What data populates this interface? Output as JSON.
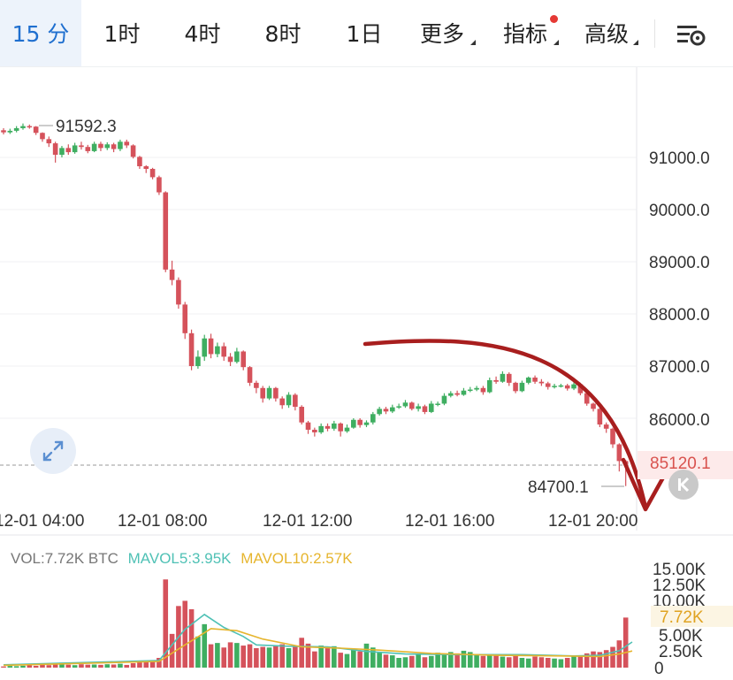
{
  "toolbar": {
    "tabs": [
      {
        "label": "15 分",
        "active": true
      },
      {
        "label": "1时"
      },
      {
        "label": "4时"
      },
      {
        "label": "8时"
      },
      {
        "label": "1日"
      },
      {
        "label": "更多",
        "dropdown": true
      },
      {
        "label": "指标",
        "dropdown": true,
        "badge": true
      },
      {
        "label": "高级",
        "dropdown": true
      }
    ],
    "settings_icon": "chart-settings-icon"
  },
  "colors": {
    "up": "#3fae61",
    "down": "#d5525b",
    "mavol5": "#4fc1b5",
    "mavol10": "#e6b52e",
    "annotation_arrow": "#a81e1e",
    "active_tab": "#1f6fcf",
    "current_price": "#d9534f"
  },
  "price_axis": {
    "labels": [
      "91000.0",
      "90000.0",
      "89000.0",
      "88000.0",
      "87000.0",
      "86000.0"
    ],
    "current_price": "85120.1"
  },
  "time_axis": {
    "labels": [
      "12-01 04:00",
      "12-01 08:00",
      "12-01 12:00",
      "12-01 16:00",
      "12-01 20:00"
    ]
  },
  "annotations": {
    "high": "91592.3",
    "low": "84700.1"
  },
  "volume": {
    "legend": {
      "vol": "VOL:7.72K BTC",
      "mavol5": "MAVOL5:3.95K",
      "mavol10": "MAVOL10:2.57K"
    },
    "axis_labels": [
      "15.00K",
      "12.50K",
      "10.00K",
      "5.00K",
      "2.50K",
      "0"
    ],
    "current_label": "7.72K"
  },
  "chart_data": {
    "type": "candlestick",
    "interval": "15 分",
    "ylim": [
      84600,
      91900
    ],
    "candles": [
      [
        91520,
        91480,
        91560,
        91440
      ],
      [
        91480,
        91510,
        91550,
        91450
      ],
      [
        91510,
        91560,
        91600,
        91480
      ],
      [
        91560,
        91600,
        91650,
        91530
      ],
      [
        91600,
        91590,
        91630,
        91550
      ],
      [
        91590,
        91470,
        91600,
        91430
      ],
      [
        91470,
        91350,
        91480,
        91300
      ],
      [
        91350,
        91270,
        91400,
        91200
      ],
      [
        91270,
        91050,
        91300,
        90900
      ],
      [
        91050,
        91180,
        91220,
        91000
      ],
      [
        91180,
        91100,
        91250,
        91050
      ],
      [
        91100,
        91230,
        91280,
        91070
      ],
      [
        91230,
        91200,
        91300,
        91150
      ],
      [
        91200,
        91120,
        91240,
        91080
      ],
      [
        91120,
        91260,
        91300,
        91100
      ],
      [
        91260,
        91180,
        91300,
        91120
      ],
      [
        91180,
        91250,
        91290,
        91140
      ],
      [
        91250,
        91160,
        91280,
        91100
      ],
      [
        91160,
        91300,
        91340,
        91120
      ],
      [
        91300,
        91230,
        91340,
        91180
      ],
      [
        91230,
        91010,
        91250,
        90980
      ],
      [
        91010,
        90830,
        91030,
        90780
      ],
      [
        90830,
        90780,
        90850,
        90700
      ],
      [
        90780,
        90620,
        90800,
        90580
      ],
      [
        90620,
        90330,
        90650,
        90280
      ],
      [
        90330,
        88850,
        90350,
        88800
      ],
      [
        88850,
        88650,
        89020,
        88550
      ],
      [
        88650,
        88180,
        88700,
        88100
      ],
      [
        88180,
        87630,
        88230,
        87520
      ],
      [
        87630,
        87000,
        87700,
        86920
      ],
      [
        87000,
        87180,
        87300,
        86950
      ],
      [
        87180,
        87530,
        87600,
        87100
      ],
      [
        87530,
        87230,
        87620,
        87150
      ],
      [
        87230,
        87380,
        87450,
        87170
      ],
      [
        87380,
        87180,
        87450,
        87100
      ],
      [
        87180,
        87080,
        87250,
        87000
      ],
      [
        87080,
        87280,
        87350,
        87050
      ],
      [
        87280,
        86980,
        87300,
        86920
      ],
      [
        86980,
        86680,
        87000,
        86620
      ],
      [
        86680,
        86580,
        86720,
        86480
      ],
      [
        86580,
        86380,
        86620,
        86300
      ],
      [
        86380,
        86580,
        86620,
        86350
      ],
      [
        86580,
        86380,
        86600,
        86320
      ],
      [
        86380,
        86250,
        86420,
        86180
      ],
      [
        86250,
        86450,
        86500,
        86200
      ],
      [
        86450,
        86220,
        86480,
        86150
      ],
      [
        86220,
        85920,
        86250,
        85880
      ],
      [
        85920,
        85780,
        85950,
        85700
      ],
      [
        85780,
        85730,
        85820,
        85650
      ],
      [
        85730,
        85850,
        85900,
        85700
      ],
      [
        85850,
        85800,
        85900,
        85750
      ],
      [
        85800,
        85900,
        85950,
        85760
      ],
      [
        85900,
        85750,
        85920,
        85650
      ],
      [
        85750,
        85820,
        85880,
        85720
      ],
      [
        85820,
        85970,
        86000,
        85800
      ],
      [
        85970,
        85870,
        86000,
        85820
      ],
      [
        85870,
        85920,
        85960,
        85830
      ],
      [
        85920,
        86080,
        86120,
        85880
      ],
      [
        86080,
        86180,
        86220,
        86050
      ],
      [
        86180,
        86130,
        86220,
        86080
      ],
      [
        86130,
        86210,
        86260,
        86100
      ],
      [
        86210,
        86230,
        86280,
        86180
      ],
      [
        86230,
        86300,
        86350,
        86200
      ],
      [
        86300,
        86180,
        86320,
        86150
      ],
      [
        86180,
        86230,
        86280,
        86130
      ],
      [
        86230,
        86120,
        86260,
        86080
      ],
      [
        86120,
        86280,
        86330,
        86100
      ],
      [
        86280,
        86280,
        86320,
        86230
      ],
      [
        86280,
        86430,
        86480,
        86250
      ],
      [
        86430,
        86480,
        86520,
        86400
      ],
      [
        86480,
        86450,
        86530,
        86420
      ],
      [
        86450,
        86530,
        86580,
        86430
      ],
      [
        86530,
        86550,
        86600,
        86500
      ],
      [
        86550,
        86580,
        86620,
        86520
      ],
      [
        86580,
        86500,
        86620,
        86450
      ],
      [
        86500,
        86730,
        86780,
        86480
      ],
      [
        86730,
        86700,
        86800,
        86660
      ],
      [
        86700,
        86850,
        86900,
        86680
      ],
      [
        86850,
        86680,
        86880,
        86620
      ],
      [
        86680,
        86520,
        86700,
        86480
      ],
      [
        86520,
        86680,
        86720,
        86500
      ],
      [
        86680,
        86780,
        86800,
        86650
      ],
      [
        86780,
        86700,
        86820,
        86660
      ],
      [
        86700,
        86670,
        86750,
        86620
      ],
      [
        86670,
        86600,
        86700,
        86550
      ],
      [
        86600,
        86620,
        86660,
        86570
      ],
      [
        86620,
        86630,
        86660,
        86590
      ],
      [
        86630,
        86570,
        86660,
        86530
      ],
      [
        86570,
        86650,
        86690,
        86540
      ],
      [
        86650,
        86480,
        86680,
        86440
      ],
      [
        86480,
        86280,
        86500,
        86240
      ],
      [
        86280,
        86180,
        86300,
        86130
      ],
      [
        86180,
        85880,
        86200,
        85830
      ],
      [
        85880,
        85800,
        85920,
        85720
      ],
      [
        85800,
        85500,
        85820,
        85430
      ],
      [
        85500,
        85180,
        85520,
        84980
      ],
      [
        85180,
        85120,
        85200,
        84700
      ]
    ],
    "volume_values": [
      180,
      260,
      220,
      300,
      350,
      280,
      420,
      380,
      520,
      760,
      450,
      380,
      520,
      460,
      480,
      430,
      520,
      480,
      600,
      420,
      680,
      880,
      920,
      1100,
      1500,
      13600,
      5200,
      9500,
      10300,
      9000,
      4800,
      6700,
      3600,
      3800,
      3100,
      3900,
      3800,
      3400,
      3600,
      3000,
      3200,
      3100,
      3400,
      3600,
      3000,
      3300,
      4600,
      3700,
      2500,
      3400,
      3100,
      3300,
      2300,
      2100,
      2900,
      2500,
      3700,
      3100,
      2400,
      2000,
      1900,
      1500,
      1600,
      1800,
      2100,
      1600,
      1800,
      2300,
      2100,
      2400,
      2200,
      2600,
      2400,
      2000,
      1800,
      1900,
      2100,
      1700,
      1600,
      1800,
      1500,
      1400,
      1700,
      1600,
      1500,
      1400,
      1300,
      1500,
      1800,
      1700,
      2200,
      2500,
      2400,
      2700,
      3200,
      4200,
      7720
    ],
    "volume_ylim": [
      0,
      15000
    ],
    "mavol5_points": [
      [
        0,
        440
      ],
      [
        24,
        1100
      ],
      [
        28,
        5900
      ],
      [
        31,
        8200
      ],
      [
        34,
        6200
      ],
      [
        37,
        4800
      ],
      [
        39,
        3500
      ],
      [
        44,
        3300
      ],
      [
        50,
        3200
      ],
      [
        56,
        2500
      ],
      [
        62,
        2100
      ],
      [
        70,
        2000
      ],
      [
        80,
        2000
      ],
      [
        88,
        1800
      ],
      [
        92,
        1900
      ],
      [
        95,
        2600
      ],
      [
        97,
        3950
      ]
    ],
    "mavol10_points": [
      [
        0,
        350
      ],
      [
        24,
        950
      ],
      [
        28,
        3500
      ],
      [
        32,
        6000
      ],
      [
        36,
        5700
      ],
      [
        40,
        4400
      ],
      [
        46,
        3200
      ],
      [
        52,
        3000
      ],
      [
        58,
        2700
      ],
      [
        66,
        2200
      ],
      [
        76,
        1900
      ],
      [
        86,
        1800
      ],
      [
        92,
        1700
      ],
      [
        95,
        2100
      ],
      [
        97,
        2570
      ]
    ]
  }
}
